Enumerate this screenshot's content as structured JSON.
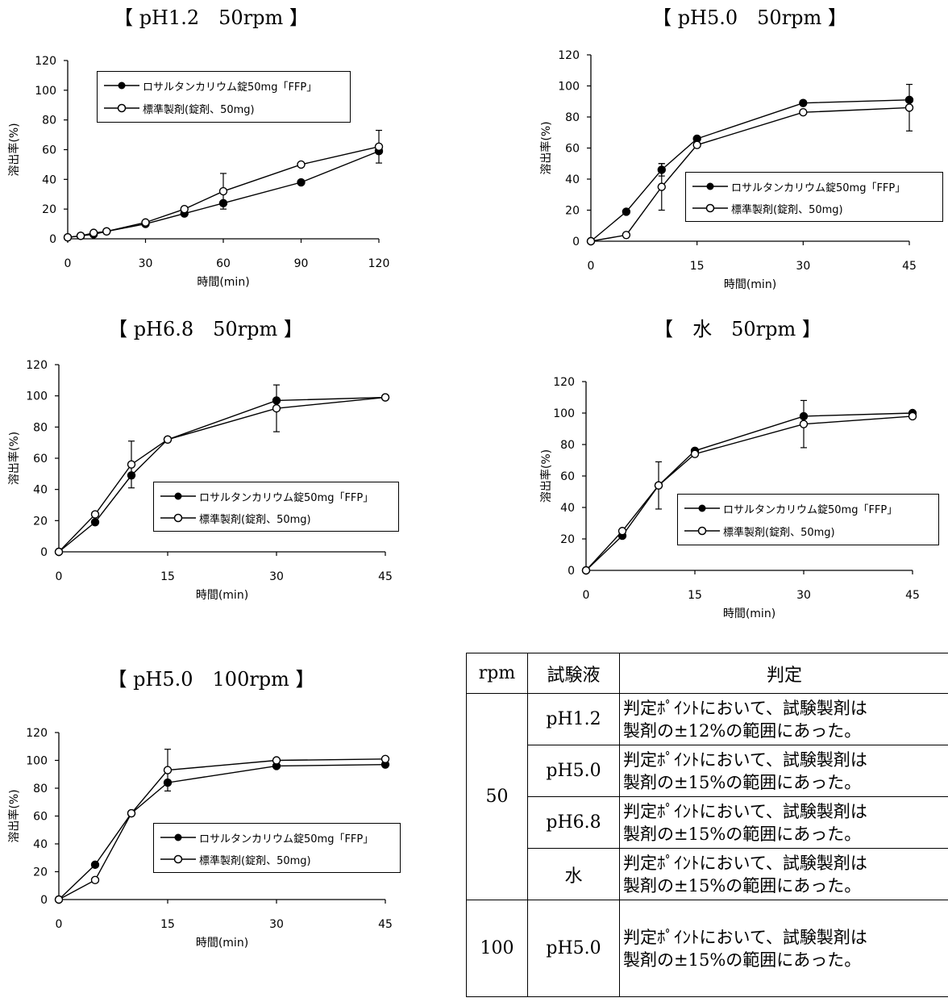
{
  "legend": {
    "test": "ロサルタンカリウム錠50mg「FFP」",
    "reference": "標準製剤(錠剤、50mg)"
  },
  "axis": {
    "xlabel": "時間(min)",
    "ylabel": "溶出率(%)"
  },
  "chart_data": [
    {
      "type": "line",
      "title": "【 pH1.2　50rpm 】",
      "xlabel": "時間(min)",
      "ylabel": "溶出率(%)",
      "xlim": [
        0,
        120
      ],
      "ylim": [
        0,
        120
      ],
      "xticks": [
        0,
        30,
        60,
        90,
        120
      ],
      "yticks": [
        0,
        20,
        40,
        60,
        80,
        100,
        120
      ],
      "legend_position": "top-left",
      "series": [
        {
          "name": "ロサルタンカリウム錠50mg「FFP」",
          "marker": "filled",
          "x": [
            0,
            5,
            10,
            15,
            30,
            45,
            60,
            90,
            120
          ],
          "y": [
            1,
            2,
            3,
            5,
            10,
            17,
            24,
            38,
            59
          ]
        },
        {
          "name": "標準製剤(錠剤、50mg)",
          "marker": "open",
          "x": [
            0,
            5,
            10,
            15,
            30,
            45,
            60,
            90,
            120
          ],
          "y": [
            1,
            2,
            4,
            5,
            11,
            20,
            32,
            50,
            62
          ],
          "error": [
            0,
            0,
            0,
            0,
            0,
            0,
            12,
            0,
            11
          ]
        }
      ]
    },
    {
      "type": "line",
      "title": "【 pH5.0　50rpm 】",
      "xlabel": "時間(min)",
      "ylabel": "溶出率(%)",
      "xlim": [
        0,
        45
      ],
      "ylim": [
        0,
        120
      ],
      "xticks": [
        0,
        15,
        30,
        45
      ],
      "yticks": [
        0,
        20,
        40,
        60,
        80,
        100,
        120
      ],
      "legend_position": "bottom-right",
      "series": [
        {
          "name": "ロサルタンカリウム錠50mg「FFP」",
          "marker": "filled",
          "x": [
            0,
            5,
            10,
            15,
            30,
            45
          ],
          "y": [
            0,
            19,
            46,
            66,
            89,
            91
          ],
          "error": [
            0,
            0,
            4,
            0,
            0,
            0
          ]
        },
        {
          "name": "標準製剤(錠剤、50mg)",
          "marker": "open",
          "x": [
            0,
            5,
            10,
            15,
            30,
            45
          ],
          "y": [
            0,
            4,
            35,
            62,
            83,
            86
          ],
          "error": [
            0,
            0,
            15,
            0,
            0,
            15
          ]
        }
      ]
    },
    {
      "type": "line",
      "title": "【 pH6.8　50rpm 】",
      "xlabel": "時間(min)",
      "ylabel": "溶出率(%)",
      "xlim": [
        0,
        45
      ],
      "ylim": [
        0,
        120
      ],
      "xticks": [
        0,
        15,
        30,
        45
      ],
      "yticks": [
        0,
        20,
        40,
        60,
        80,
        100,
        120
      ],
      "legend_position": "bottom-right",
      "series": [
        {
          "name": "ロサルタンカリウム錠50mg「FFP」",
          "marker": "filled",
          "x": [
            0,
            5,
            10,
            15,
            30,
            45
          ],
          "y": [
            0,
            19,
            49,
            72,
            97,
            99
          ]
        },
        {
          "name": "標準製剤(錠剤、50mg)",
          "marker": "open",
          "x": [
            0,
            5,
            10,
            15,
            30,
            45
          ],
          "y": [
            0,
            24,
            56,
            72,
            92,
            99
          ],
          "error": [
            0,
            0,
            15,
            0,
            15,
            0
          ]
        }
      ]
    },
    {
      "type": "line",
      "title": "【　水　50rpm 】",
      "xlabel": "時間(min)",
      "ylabel": "溶出率(%)",
      "xlim": [
        0,
        45
      ],
      "ylim": [
        0,
        120
      ],
      "xticks": [
        0,
        15,
        30,
        45
      ],
      "yticks": [
        0,
        20,
        40,
        60,
        80,
        100,
        120
      ],
      "legend_position": "bottom-right",
      "series": [
        {
          "name": "ロサルタンカリウム錠50mg「FFP」",
          "marker": "filled",
          "x": [
            0,
            5,
            10,
            15,
            30,
            45
          ],
          "y": [
            0,
            22,
            54,
            76,
            98,
            100
          ]
        },
        {
          "name": "標準製剤(錠剤、50mg)",
          "marker": "open",
          "x": [
            0,
            5,
            10,
            15,
            30,
            45
          ],
          "y": [
            0,
            25,
            54,
            74,
            93,
            98
          ],
          "error": [
            0,
            0,
            15,
            0,
            15,
            0
          ]
        }
      ]
    },
    {
      "type": "line",
      "title": "【 pH5.0　100rpm 】",
      "xlabel": "時間(min)",
      "ylabel": "溶出率(%)",
      "xlim": [
        0,
        45
      ],
      "ylim": [
        0,
        120
      ],
      "xticks": [
        0,
        15,
        30,
        45
      ],
      "yticks": [
        0,
        20,
        40,
        60,
        80,
        100,
        120
      ],
      "legend_position": "bottom-right",
      "series": [
        {
          "name": "ロサルタンカリウム錠50mg「FFP」",
          "marker": "filled",
          "x": [
            0,
            5,
            10,
            15,
            30,
            45
          ],
          "y": [
            0,
            25,
            62,
            84,
            96,
            97
          ]
        },
        {
          "name": "標準製剤(錠剤、50mg)",
          "marker": "open",
          "x": [
            0,
            5,
            10,
            15,
            30,
            45
          ],
          "y": [
            0,
            14,
            62,
            93,
            100,
            101
          ],
          "error": [
            0,
            0,
            0,
            15,
            0,
            0
          ]
        }
      ]
    }
  ],
  "table": {
    "headers": [
      "rpm",
      "試験液",
      "判定"
    ],
    "rpm_50": "50",
    "rpm_100": "100",
    "rows": [
      {
        "medium": "pH1.2",
        "result_1": "判定ﾎﾟｲﾝﾄにおいて、試験製剤は",
        "result_2": "製剤の±12%の範囲にあった。"
      },
      {
        "medium": "pH5.0",
        "result_1": "判定ﾎﾟｲﾝﾄにおいて、試験製剤は",
        "result_2": "製剤の±15%の範囲にあった。"
      },
      {
        "medium": "pH6.8",
        "result_1": "判定ﾎﾟｲﾝﾄにおいて、試験製剤は",
        "result_2": "製剤の±15%の範囲にあった。"
      },
      {
        "medium": "水",
        "result_1": "判定ﾎﾟｲﾝﾄにおいて、試験製剤は",
        "result_2": "製剤の±15%の範囲にあった。"
      },
      {
        "medium": "pH5.0",
        "result_1": "判定ﾎﾟｲﾝﾄにおいて、試験製剤は",
        "result_2": "製剤の±15%の範囲にあった。"
      }
    ]
  }
}
